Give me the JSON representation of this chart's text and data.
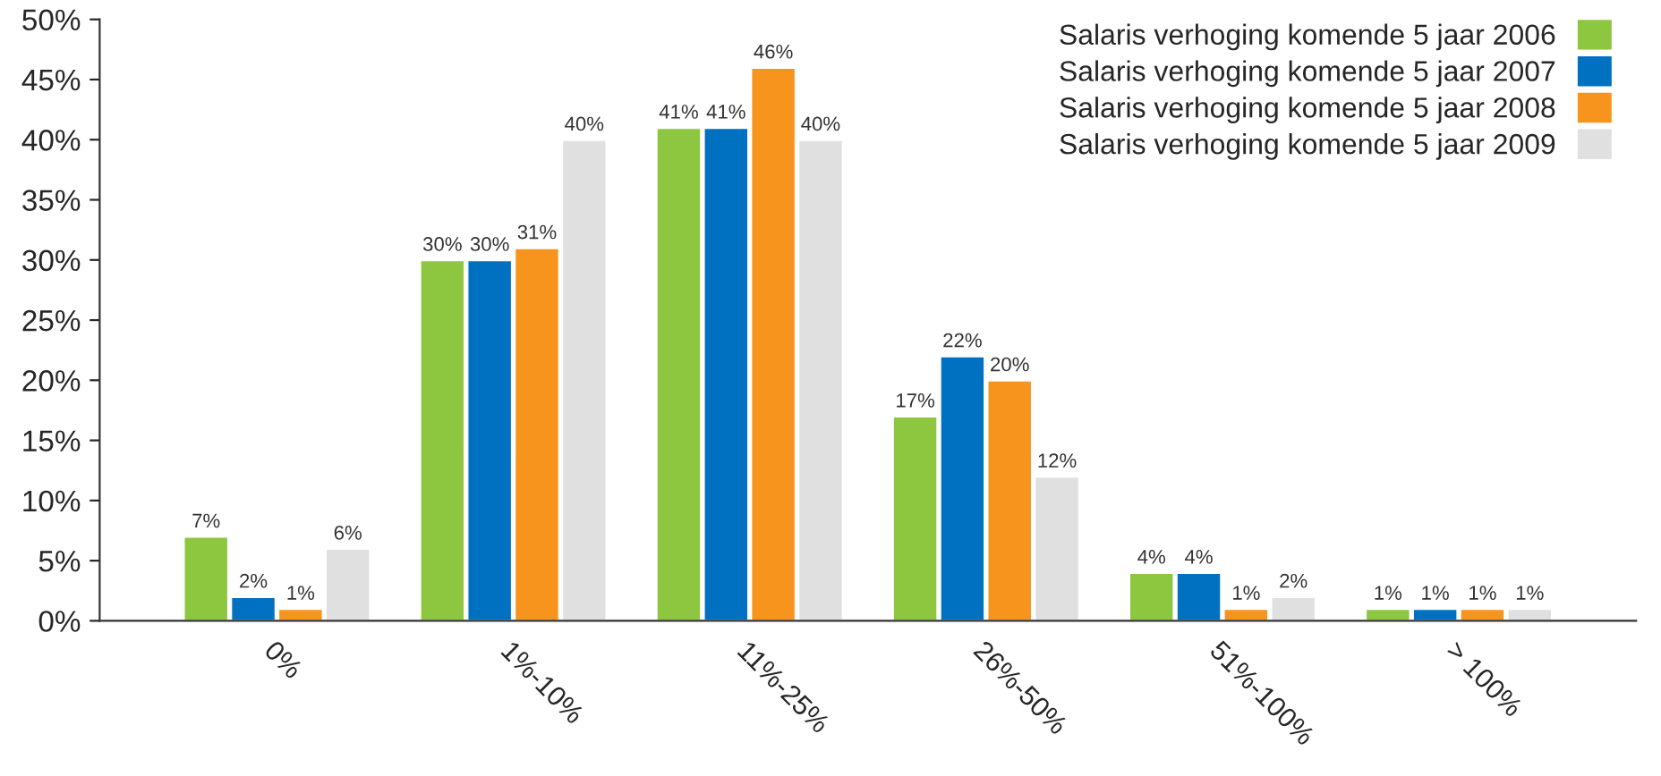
{
  "chart_data": {
    "type": "bar",
    "categories": [
      "0%",
      "1%-10%",
      "11%-25%",
      "26%-50%",
      "51%-100%",
      "> 100%"
    ],
    "series": [
      {
        "name": "Salaris verhoging komende 5 jaar 2006",
        "color": "#8dc63f",
        "values": [
          7,
          30,
          41,
          17,
          4,
          1
        ],
        "value_labels": [
          "7%",
          "30%",
          "41%",
          "17%",
          "4%",
          "1%"
        ]
      },
      {
        "name": "Salaris verhoging komende 5 jaar 2007",
        "color": "#0070c0",
        "values": [
          2,
          30,
          41,
          22,
          4,
          1
        ],
        "value_labels": [
          "2%",
          "30%",
          "41%",
          "22%",
          "4%",
          "1%"
        ]
      },
      {
        "name": "Salaris verhoging komende 5 jaar 2008",
        "color": "#f7941d",
        "values": [
          1,
          31,
          46,
          20,
          1,
          1
        ],
        "value_labels": [
          "1%",
          "31%",
          "46%",
          "20%",
          "1%",
          "1%"
        ]
      },
      {
        "name": "Salaris verhoging komende 5 jaar 2009",
        "color": "#e0e0e0",
        "values": [
          6,
          40,
          40,
          12,
          2,
          1
        ],
        "value_labels": [
          "6%",
          "40%",
          "40%",
          "12%",
          "2%",
          "1%"
        ]
      }
    ],
    "ylim": [
      0,
      50
    ],
    "yticks": [
      {
        "value": 0,
        "label": "0%"
      },
      {
        "value": 5,
        "label": "5%"
      },
      {
        "value": 10,
        "label": "10%"
      },
      {
        "value": 15,
        "label": "15%"
      },
      {
        "value": 20,
        "label": "20%"
      },
      {
        "value": 25,
        "label": "25%"
      },
      {
        "value": 30,
        "label": "30%"
      },
      {
        "value": 35,
        "label": "35%"
      },
      {
        "value": 40,
        "label": "40%"
      },
      {
        "value": 45,
        "label": "45%"
      },
      {
        "value": 50,
        "label": "50%"
      }
    ],
    "grid": false,
    "legend": "top right"
  }
}
